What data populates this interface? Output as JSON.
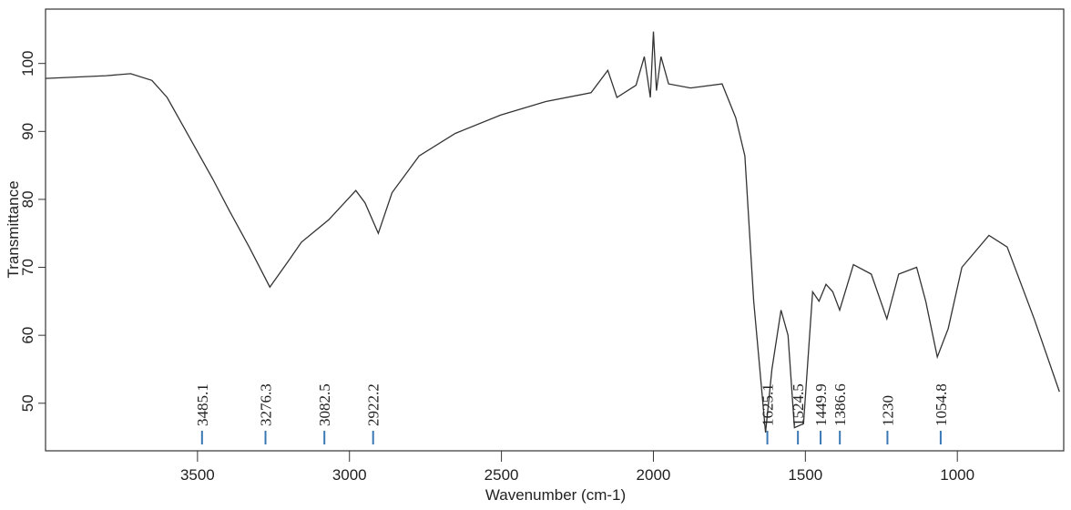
{
  "chart_data": {
    "type": "line",
    "xlabel": "Wavenumber (cm-1)",
    "ylabel": "Transmittance",
    "xlim": [
      4000,
      650
    ],
    "ylim": [
      43,
      108
    ],
    "xticks": [
      3500,
      3000,
      2500,
      2000,
      1500,
      1000
    ],
    "yticks": [
      50,
      60,
      70,
      80,
      90,
      100
    ],
    "color": "#333333",
    "peak_color": "#3a78b5",
    "peaks": [
      3485.1,
      3276.3,
      3082.5,
      2922.2,
      1625.1,
      1524.5,
      1449.9,
      1386.6,
      1230,
      1054.8
    ],
    "x": [
      4000,
      3900,
      3800,
      3720,
      3650,
      3600,
      3550,
      3500,
      3450,
      3396,
      3330,
      3262,
      3200,
      3158,
      3068,
      2979,
      2949,
      2905,
      2860,
      2771,
      2652,
      2503,
      2354,
      2205,
      2150,
      2120,
      2057,
      2030,
      2010,
      2000,
      1990,
      1975,
      1950,
      1878,
      1774,
      1729,
      1699,
      1670,
      1631,
      1610,
      1580,
      1557,
      1536,
      1506,
      1476,
      1455,
      1432,
      1410,
      1387,
      1342,
      1283,
      1232,
      1193,
      1134,
      1104,
      1066,
      1030,
      985,
      896,
      836,
      747,
      664
    ],
    "values": [
      97.8,
      98,
      98.2,
      98.5,
      97.5,
      95,
      91,
      87,
      83,
      78.4,
      73,
      67.1,
      71,
      73.7,
      77,
      81.3,
      79.5,
      75,
      81,
      86.4,
      89.7,
      92.4,
      94.4,
      95.7,
      99,
      95,
      96.8,
      101,
      95,
      104.7,
      96,
      101,
      97,
      96.4,
      97,
      92,
      86.4,
      65,
      45.7,
      55,
      63.7,
      60,
      46.4,
      47,
      66.4,
      65,
      67.5,
      66.4,
      63.7,
      70.4,
      69,
      62.4,
      69,
      70,
      65,
      56.8,
      61,
      70,
      74.7,
      73,
      62.4,
      51.7
    ]
  }
}
